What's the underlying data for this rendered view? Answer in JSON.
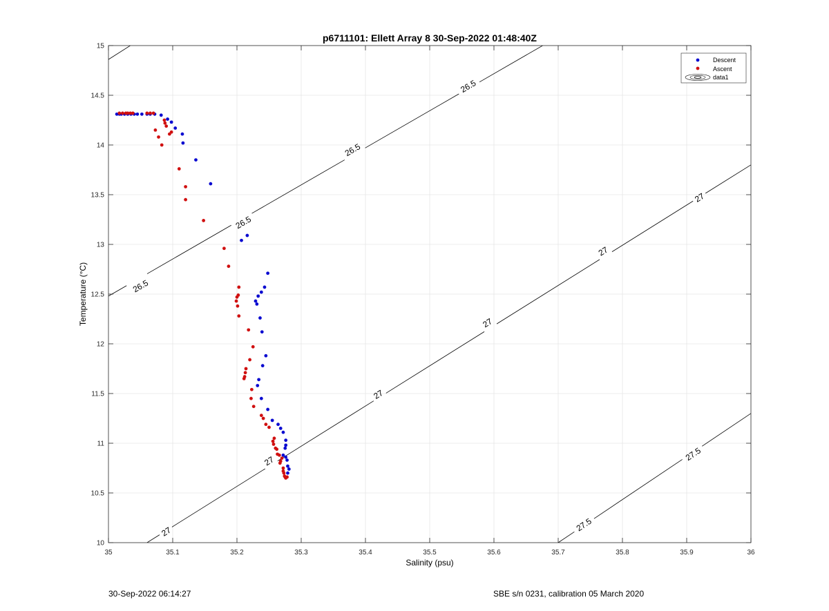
{
  "footer": {
    "timestamp": "30-Sep-2022 06:14:27",
    "instrument": "SBE s/n 0231, calibration 05 March 2020"
  },
  "chart_data": {
    "type": "scatter",
    "title": "p6711101: Ellett Array 8 30-Sep-2022 01:48:40Z",
    "xlabel": "Salinity (psu)",
    "ylabel": "Temperature (°C)",
    "xlim": [
      35,
      36
    ],
    "ylim": [
      10,
      15
    ],
    "xticks": [
      35,
      35.1,
      35.2,
      35.3,
      35.4,
      35.5,
      35.6,
      35.7,
      35.8,
      35.9,
      36
    ],
    "yticks": [
      10,
      10.5,
      11,
      11.5,
      12,
      12.5,
      13,
      13.5,
      14,
      14.5,
      15
    ],
    "grid": true,
    "legend_position": "top-right",
    "legend": [
      "Descent",
      "Ascent",
      "data1"
    ],
    "colors": {
      "descent": "#0a0ad0",
      "ascent": "#d01010",
      "contour": "#000000",
      "grid": "#e6e6e6"
    },
    "series": [
      {
        "name": "Descent",
        "points": [
          [
            35.013,
            14.31
          ],
          [
            35.017,
            14.31
          ],
          [
            35.02,
            14.31
          ],
          [
            35.025,
            14.31
          ],
          [
            35.03,
            14.31
          ],
          [
            35.035,
            14.31
          ],
          [
            35.04,
            14.31
          ],
          [
            35.045,
            14.31
          ],
          [
            35.052,
            14.31
          ],
          [
            35.06,
            14.31
          ],
          [
            35.065,
            14.31
          ],
          [
            35.072,
            14.31
          ],
          [
            35.082,
            14.3
          ],
          [
            35.092,
            14.26
          ],
          [
            35.098,
            14.23
          ],
          [
            35.104,
            14.17
          ],
          [
            35.115,
            14.11
          ],
          [
            35.116,
            14.02
          ],
          [
            35.136,
            13.85
          ],
          [
            35.159,
            13.61
          ],
          [
            35.207,
            13.04
          ],
          [
            35.216,
            13.09
          ],
          [
            35.248,
            12.71
          ],
          [
            35.243,
            12.57
          ],
          [
            35.238,
            12.52
          ],
          [
            35.233,
            12.48
          ],
          [
            35.229,
            12.43
          ],
          [
            35.231,
            12.4
          ],
          [
            35.236,
            12.26
          ],
          [
            35.239,
            12.12
          ],
          [
            35.245,
            11.88
          ],
          [
            35.24,
            11.78
          ],
          [
            35.234,
            11.64
          ],
          [
            35.232,
            11.58
          ],
          [
            35.238,
            11.45
          ],
          [
            35.248,
            11.34
          ],
          [
            35.255,
            11.23
          ],
          [
            35.264,
            11.19
          ],
          [
            35.268,
            11.15
          ],
          [
            35.272,
            11.11
          ],
          [
            35.276,
            11.03
          ],
          [
            35.276,
            10.98
          ],
          [
            35.275,
            10.95
          ],
          [
            35.272,
            10.88
          ],
          [
            35.276,
            10.86
          ],
          [
            35.278,
            10.83
          ],
          [
            35.279,
            10.77
          ],
          [
            35.281,
            10.74
          ],
          [
            35.279,
            10.7
          ]
        ]
      },
      {
        "name": "Ascent",
        "points": [
          [
            35.017,
            14.32
          ],
          [
            35.022,
            14.32
          ],
          [
            35.027,
            14.32
          ],
          [
            35.03,
            14.32
          ],
          [
            35.034,
            14.32
          ],
          [
            35.038,
            14.32
          ],
          [
            35.06,
            14.32
          ],
          [
            35.065,
            14.32
          ],
          [
            35.07,
            14.32
          ],
          [
            35.087,
            14.25
          ],
          [
            35.088,
            14.22
          ],
          [
            35.09,
            14.19
          ],
          [
            35.073,
            14.15
          ],
          [
            35.098,
            14.13
          ],
          [
            35.095,
            14.11
          ],
          [
            35.078,
            14.08
          ],
          [
            35.083,
            14.0
          ],
          [
            35.11,
            13.76
          ],
          [
            35.12,
            13.58
          ],
          [
            35.12,
            13.45
          ],
          [
            35.148,
            13.24
          ],
          [
            35.18,
            12.96
          ],
          [
            35.187,
            12.78
          ],
          [
            35.203,
            12.57
          ],
          [
            35.202,
            12.49
          ],
          [
            35.2,
            12.47
          ],
          [
            35.199,
            12.43
          ],
          [
            35.201,
            12.38
          ],
          [
            35.203,
            12.28
          ],
          [
            35.218,
            12.14
          ],
          [
            35.225,
            11.97
          ],
          [
            35.22,
            11.84
          ],
          [
            35.214,
            11.75
          ],
          [
            35.213,
            11.71
          ],
          [
            35.212,
            11.67
          ],
          [
            35.211,
            11.65
          ],
          [
            35.223,
            11.54
          ],
          [
            35.222,
            11.45
          ],
          [
            35.226,
            11.37
          ],
          [
            35.238,
            11.28
          ],
          [
            35.241,
            11.25
          ],
          [
            35.245,
            11.19
          ],
          [
            35.25,
            11.16
          ],
          [
            35.258,
            11.05
          ],
          [
            35.256,
            11.02
          ],
          [
            35.257,
            10.99
          ],
          [
            35.26,
            10.95
          ],
          [
            35.262,
            10.94
          ],
          [
            35.263,
            10.89
          ],
          [
            35.266,
            10.88
          ],
          [
            35.268,
            10.82
          ],
          [
            35.267,
            10.8
          ],
          [
            35.272,
            10.75
          ],
          [
            35.272,
            10.72
          ],
          [
            35.273,
            10.7
          ],
          [
            35.274,
            10.67
          ],
          [
            35.275,
            10.66
          ],
          [
            35.276,
            10.65
          ],
          [
            35.278,
            10.66
          ],
          [
            35.27,
            10.85
          ]
        ]
      }
    ],
    "contours": [
      {
        "level": "26.5",
        "points": [
          [
            35.0,
            12.48
          ],
          [
            35.7,
            15.09
          ]
        ],
        "labels": [
          [
            35.05,
            12.58
          ],
          [
            35.21,
            13.22
          ],
          [
            35.38,
            13.95
          ],
          [
            35.56,
            14.59
          ]
        ]
      },
      {
        "level": "27",
        "points": [
          [
            35.06,
            10.0
          ],
          [
            36.0,
            13.8
          ]
        ],
        "labels": [
          [
            35.09,
            10.11
          ],
          [
            35.25,
            10.82
          ],
          [
            35.42,
            11.49
          ],
          [
            35.59,
            12.21
          ],
          [
            35.77,
            12.93
          ],
          [
            35.92,
            13.47
          ]
        ]
      },
      {
        "level": "27.5",
        "points": [
          [
            35.7,
            10.0
          ],
          [
            36.0,
            11.3
          ]
        ],
        "labels": [
          [
            35.74,
            10.18
          ],
          [
            35.91,
            10.89
          ]
        ]
      },
      {
        "level": "",
        "points": [
          [
            35.0,
            14.86
          ],
          [
            35.35,
            16.3
          ]
        ],
        "labels": []
      }
    ]
  }
}
